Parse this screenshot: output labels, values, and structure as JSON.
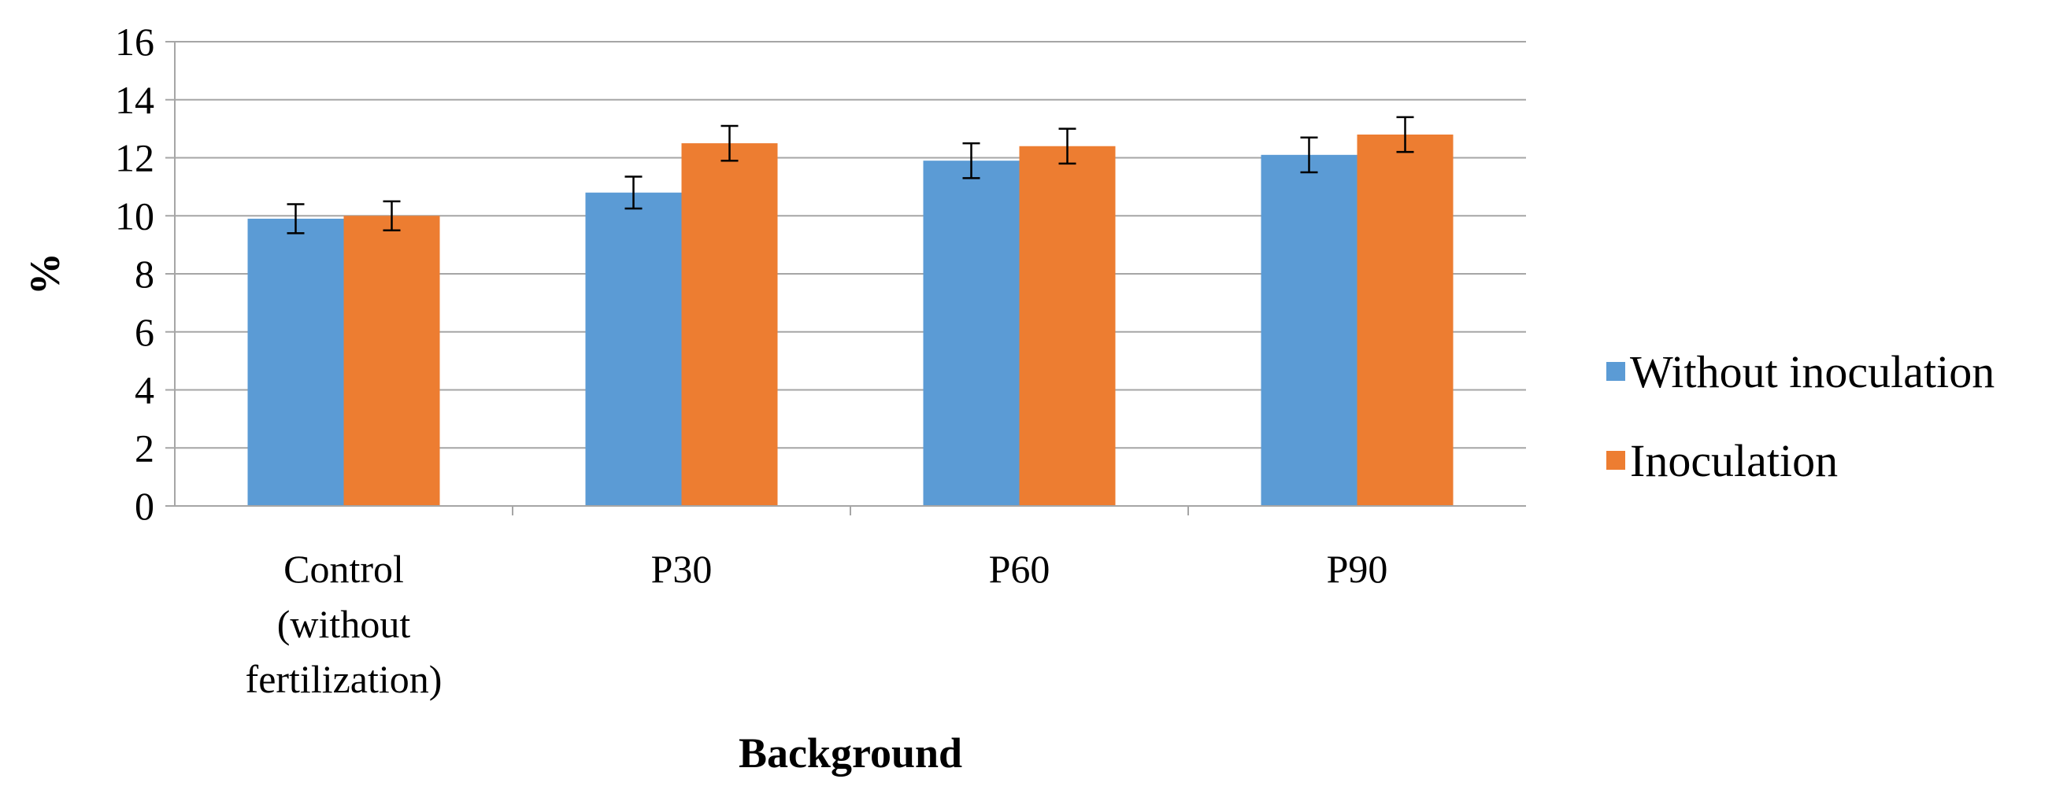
{
  "chart_data": {
    "type": "bar",
    "title": "",
    "xlabel": "Background",
    "ylabel": "%",
    "ylim": [
      0,
      16
    ],
    "yticks": [
      0,
      2,
      4,
      6,
      8,
      10,
      12,
      14,
      16
    ],
    "grid": true,
    "legend_position": "right",
    "categories": [
      [
        "Control",
        "(without",
        "fertilization)"
      ],
      [
        "P30"
      ],
      [
        "P60"
      ],
      [
        "P90"
      ]
    ],
    "series": [
      {
        "name": "Without inoculation",
        "color": "#5b9bd5",
        "values": [
          9.9,
          10.8,
          11.9,
          12.1
        ],
        "errors": [
          0.5,
          0.55,
          0.6,
          0.6
        ]
      },
      {
        "name": "Inoculation",
        "color": "#ed7d31",
        "values": [
          10.0,
          12.5,
          12.4,
          12.8
        ],
        "errors": [
          0.5,
          0.6,
          0.6,
          0.6
        ]
      }
    ]
  }
}
